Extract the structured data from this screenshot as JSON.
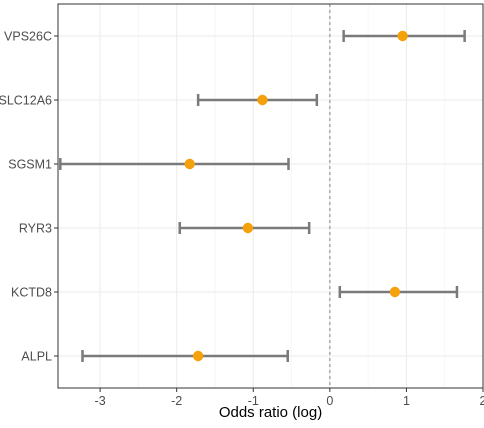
{
  "chart_data": {
    "type": "forest",
    "title": "",
    "xlabel": "Odds ratio (log)",
    "ylabel": "",
    "xlim": [
      -3.55,
      2.0
    ],
    "x_ticks": [
      -3,
      -2,
      -1,
      0,
      1,
      2
    ],
    "x_tick_labels": [
      "-3",
      "-2",
      "-1",
      "0",
      "1",
      "2"
    ],
    "reference_line": 0,
    "grid": true,
    "series": [
      {
        "points": [
          {
            "label": "VPS26C",
            "estimate": 0.95,
            "ci_low": 0.18,
            "ci_high": 1.76
          },
          {
            "label": "SLC12A6",
            "estimate": -0.88,
            "ci_low": -1.72,
            "ci_high": -0.17
          },
          {
            "label": "SGSM1",
            "estimate": -1.83,
            "ci_low": -3.52,
            "ci_high": -0.54
          },
          {
            "label": "RYR3",
            "estimate": -1.07,
            "ci_low": -1.96,
            "ci_high": -0.27
          },
          {
            "label": "KCTD8",
            "estimate": 0.85,
            "ci_low": 0.13,
            "ci_high": 1.66
          },
          {
            "label": "ALPL",
            "estimate": -1.72,
            "ci_low": -3.23,
            "ci_high": -0.55
          }
        ]
      }
    ],
    "colors": {
      "point": "#f5a10c",
      "errorbar": "#7a7a7a",
      "grid": "#ebebeb",
      "reference_line": "#8c8c8c",
      "axis_text": "#4d4d4d",
      "panel_border": "#333333"
    }
  }
}
